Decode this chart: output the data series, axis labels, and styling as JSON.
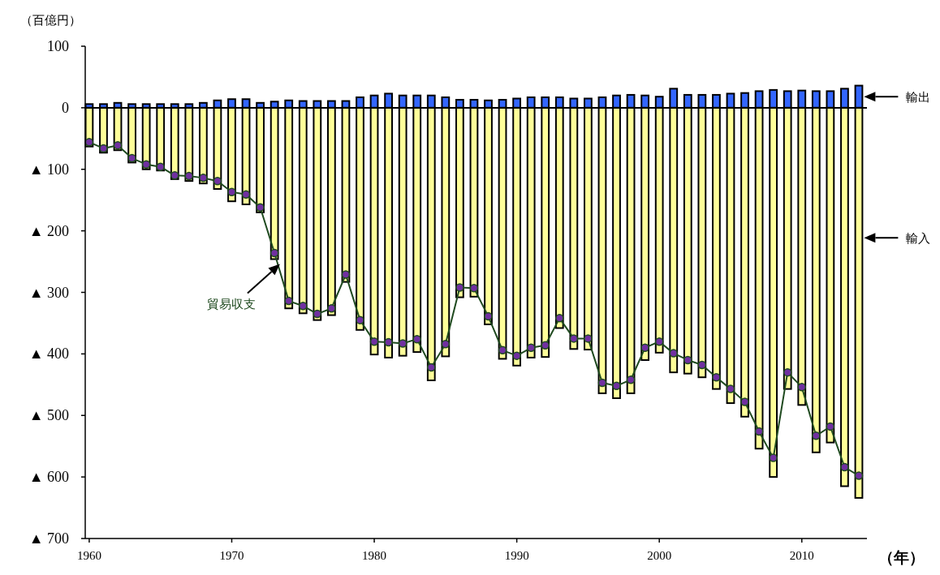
{
  "chart_data": {
    "type": "bar",
    "ylabel": "（百億円）",
    "xlabel": "（年）",
    "x": [
      1960,
      1961,
      1962,
      1963,
      1964,
      1965,
      1966,
      1967,
      1968,
      1969,
      1970,
      1971,
      1972,
      1973,
      1974,
      1975,
      1976,
      1977,
      1978,
      1979,
      1980,
      1981,
      1982,
      1983,
      1984,
      1985,
      1986,
      1987,
      1988,
      1989,
      1990,
      1991,
      1992,
      1993,
      1994,
      1995,
      1996,
      1997,
      1998,
      1999,
      2000,
      2001,
      2002,
      2003,
      2004,
      2005,
      2006,
      2007,
      2008,
      2009,
      2010,
      2011,
      2012,
      2013,
      2014
    ],
    "series": [
      {
        "name": "輸出",
        "color": "#3366ff",
        "values": [
          6,
          6,
          8,
          6,
          6,
          6,
          6,
          6,
          8,
          12,
          14,
          14,
          8,
          10,
          12,
          11,
          11,
          11,
          11,
          17,
          20,
          23,
          20,
          20,
          20,
          17,
          13,
          13,
          12,
          13,
          15,
          17,
          17,
          17,
          15,
          15,
          17,
          20,
          21,
          20,
          18,
          31,
          21,
          21,
          21,
          23,
          24,
          27,
          29,
          27,
          28,
          27,
          27,
          31,
          36
        ]
      },
      {
        "name": "輸入",
        "color": "#ffff99",
        "values": [
          -63,
          -73,
          -69,
          -89,
          -100,
          -102,
          -116,
          -119,
          -123,
          -132,
          -152,
          -157,
          -170,
          -246,
          -326,
          -334,
          -345,
          -337,
          -283,
          -361,
          -401,
          -406,
          -403,
          -397,
          -443,
          -404,
          -308,
          -307,
          -352,
          -408,
          -419,
          -406,
          -405,
          -358,
          -392,
          -393,
          -464,
          -472,
          -464,
          -410,
          -398,
          -430,
          -432,
          -438,
          -457,
          -480,
          -502,
          -554,
          -600,
          -457,
          -483,
          -560,
          -544,
          -615,
          -634
        ]
      },
      {
        "name": "貿易収支",
        "type": "line",
        "color": "#1f4a1f",
        "colors": [
          "#7030a0",
          "#7030a0",
          "#7030a0",
          "#7030a0",
          "#7030a0",
          "#7030a0",
          "#7030a0",
          "#7030a0",
          "#7030a0",
          "#7030a0",
          "#7030a0",
          "#7030a0",
          "#7030a0",
          "#7030a0",
          "#7030a0",
          "#7030a0",
          "#7030a0",
          "#7030a0",
          "#7030a0",
          "#7030a0",
          "#7030a0",
          "#7030a0",
          "#7030a0",
          "#7030a0",
          "#7030a0",
          "#7030a0",
          "#7030a0",
          "#7030a0",
          "#7030a0",
          "#7030a0",
          "#7030a0",
          "#7030a0",
          "#7030a0",
          "#7030a0",
          "#7030a0",
          "#7030a0",
          "#7030a0",
          "#7030a0",
          "#7030a0",
          "#7030a0",
          "#7030a0",
          "#7030a0",
          "#7030a0",
          "#7030a0",
          "#7030a0",
          "#7030a0",
          "#7030a0",
          "#7030a0",
          "#7030a0",
          "#7030a0",
          "#7030a0",
          "#7030a0",
          "#7030a0",
          "#7030a0",
          "#7030a0"
        ],
        "values": [
          -56,
          -66,
          -61,
          -82,
          -92,
          -96,
          -110,
          -111,
          -114,
          -119,
          -137,
          -141,
          -162,
          -236,
          -314,
          -322,
          -335,
          -326,
          -271,
          -345,
          -380,
          -381,
          -383,
          -376,
          -422,
          -384,
          -292,
          -293,
          -339,
          -394,
          -403,
          -390,
          -386,
          -342,
          -375,
          -375,
          -447,
          -452,
          -442,
          -390,
          -380,
          -399,
          -410,
          -418,
          -438,
          -457,
          -478,
          -526,
          -569,
          -430,
          -454,
          -533,
          -518,
          -584,
          -598
        ]
      }
    ],
    "stacked": true,
    "legend": "right",
    "marker": "circle",
    "xlim": [
      1959.72,
      2014.57
    ],
    "xticks": [
      1960,
      1970,
      1980,
      1990,
      2000,
      2010
    ],
    "ylim": [
      -700,
      100
    ],
    "yticks": [
      100,
      0,
      {
        "value": -100,
        "label": "▲ 100"
      },
      {
        "value": -200,
        "label": "▲ 200"
      },
      {
        "value": -300,
        "label": "▲ 300"
      },
      {
        "value": -400,
        "label": "▲ 400"
      },
      {
        "value": -500,
        "label": "▲ 500"
      },
      {
        "value": -600,
        "label": "▲ 600"
      },
      {
        "value": -700,
        "label": "▲ 700"
      }
    ],
    "ref_lines": [
      {
        "axis": "y",
        "value": 0,
        "color": "#000000"
      }
    ]
  }
}
